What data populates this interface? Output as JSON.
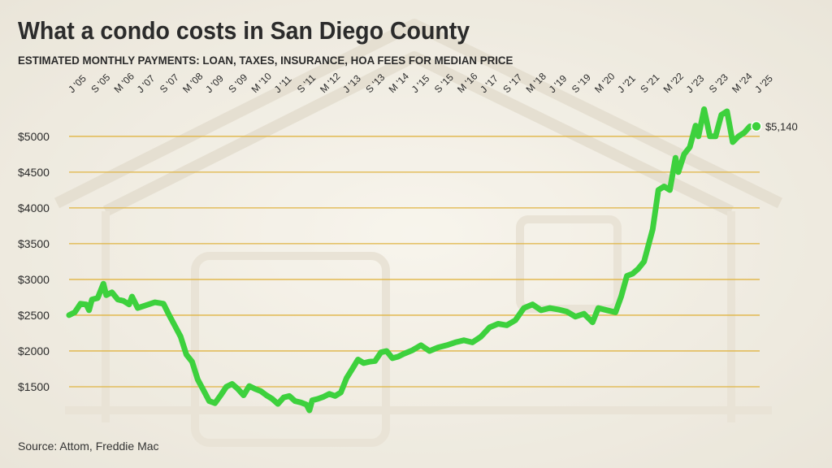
{
  "title": "What a condo costs in San Diego County",
  "subtitle": "ESTIMATED MONTHLY PAYMENTS: LOAN, TAXES, INSURANCE, HOA FEES FOR MEDIAN PRICE",
  "source": "Source: Attom, Freddie Mac",
  "colors": {
    "line": "#3dd13d",
    "gridline": "#e0b443",
    "text": "#2b2b2b",
    "background": "#f1ede2"
  },
  "chart_data": {
    "type": "line",
    "xlabel": "",
    "ylabel": "",
    "xlim": [
      "2005-01",
      "2025-01"
    ],
    "ylim": [
      1000,
      5600
    ],
    "grid": "horizontal",
    "legend": "none",
    "y_ticks": [
      {
        "value": 1500,
        "label": "$1500"
      },
      {
        "value": 2000,
        "label": "$2000"
      },
      {
        "value": 2500,
        "label": "$2500"
      },
      {
        "value": 3000,
        "label": "$3000"
      },
      {
        "value": 3500,
        "label": "$3500"
      },
      {
        "value": 4000,
        "label": "$4000"
      },
      {
        "value": 4500,
        "label": "$4500"
      },
      {
        "value": 5000,
        "label": "$5000"
      }
    ],
    "x_ticks": [
      {
        "date": "2005-01",
        "label": "J '05"
      },
      {
        "date": "2005-09",
        "label": "S '05"
      },
      {
        "date": "2006-05",
        "label": "M '06"
      },
      {
        "date": "2007-01",
        "label": "J '07"
      },
      {
        "date": "2007-09",
        "label": "S '07"
      },
      {
        "date": "2008-05",
        "label": "M '08"
      },
      {
        "date": "2009-01",
        "label": "J '09"
      },
      {
        "date": "2009-09",
        "label": "S '09"
      },
      {
        "date": "2010-05",
        "label": "M '10"
      },
      {
        "date": "2011-01",
        "label": "J '11"
      },
      {
        "date": "2011-09",
        "label": "S '11"
      },
      {
        "date": "2012-05",
        "label": "M '12"
      },
      {
        "date": "2013-01",
        "label": "J '13"
      },
      {
        "date": "2013-09",
        "label": "S '13"
      },
      {
        "date": "2014-05",
        "label": "M '14"
      },
      {
        "date": "2015-01",
        "label": "J '15"
      },
      {
        "date": "2015-09",
        "label": "S '15"
      },
      {
        "date": "2016-05",
        "label": "M '16"
      },
      {
        "date": "2017-01",
        "label": "J '17"
      },
      {
        "date": "2017-09",
        "label": "S '17"
      },
      {
        "date": "2018-05",
        "label": "M '18"
      },
      {
        "date": "2019-01",
        "label": "J '19"
      },
      {
        "date": "2019-09",
        "label": "S '19"
      },
      {
        "date": "2020-05",
        "label": "M '20"
      },
      {
        "date": "2021-01",
        "label": "J '21"
      },
      {
        "date": "2021-09",
        "label": "S '21"
      },
      {
        "date": "2022-05",
        "label": "M '22"
      },
      {
        "date": "2023-01",
        "label": "J '23"
      },
      {
        "date": "2023-09",
        "label": "S '23"
      },
      {
        "date": "2024-05",
        "label": "M '24"
      },
      {
        "date": "2025-01",
        "label": "J '25"
      }
    ],
    "series": [
      {
        "points": [
          [
            "2005-01",
            2500
          ],
          [
            "2005-03",
            2540
          ],
          [
            "2005-05",
            2660
          ],
          [
            "2005-07",
            2650
          ],
          [
            "2005-08",
            2570
          ],
          [
            "2005-09",
            2720
          ],
          [
            "2005-11",
            2740
          ],
          [
            "2006-01",
            2940
          ],
          [
            "2006-02",
            2780
          ],
          [
            "2006-04",
            2820
          ],
          [
            "2006-06",
            2720
          ],
          [
            "2006-08",
            2700
          ],
          [
            "2006-10",
            2650
          ],
          [
            "2006-11",
            2760
          ],
          [
            "2007-01",
            2600
          ],
          [
            "2007-04",
            2640
          ],
          [
            "2007-07",
            2680
          ],
          [
            "2007-10",
            2660
          ],
          [
            "2007-12",
            2500
          ],
          [
            "2008-02",
            2350
          ],
          [
            "2008-04",
            2200
          ],
          [
            "2008-06",
            1950
          ],
          [
            "2008-08",
            1850
          ],
          [
            "2008-10",
            1600
          ],
          [
            "2008-12",
            1450
          ],
          [
            "2009-02",
            1300
          ],
          [
            "2009-04",
            1270
          ],
          [
            "2009-06",
            1380
          ],
          [
            "2009-08",
            1500
          ],
          [
            "2009-10",
            1540
          ],
          [
            "2009-12",
            1470
          ],
          [
            "2010-02",
            1380
          ],
          [
            "2010-04",
            1510
          ],
          [
            "2010-06",
            1470
          ],
          [
            "2010-08",
            1440
          ],
          [
            "2010-10",
            1380
          ],
          [
            "2010-12",
            1330
          ],
          [
            "2011-02",
            1260
          ],
          [
            "2011-04",
            1350
          ],
          [
            "2011-06",
            1370
          ],
          [
            "2011-08",
            1300
          ],
          [
            "2011-10",
            1280
          ],
          [
            "2011-12",
            1250
          ],
          [
            "2012-01",
            1170
          ],
          [
            "2012-02",
            1310
          ],
          [
            "2012-04",
            1330
          ],
          [
            "2012-06",
            1360
          ],
          [
            "2012-08",
            1400
          ],
          [
            "2012-10",
            1370
          ],
          [
            "2012-12",
            1420
          ],
          [
            "2013-02",
            1620
          ],
          [
            "2013-04",
            1750
          ],
          [
            "2013-06",
            1880
          ],
          [
            "2013-08",
            1830
          ],
          [
            "2013-10",
            1850
          ],
          [
            "2013-12",
            1860
          ],
          [
            "2014-02",
            1980
          ],
          [
            "2014-04",
            2000
          ],
          [
            "2014-06",
            1900
          ],
          [
            "2014-08",
            1920
          ],
          [
            "2014-10",
            1960
          ],
          [
            "2015-01",
            2010
          ],
          [
            "2015-04",
            2080
          ],
          [
            "2015-07",
            2000
          ],
          [
            "2015-10",
            2050
          ],
          [
            "2016-01",
            2080
          ],
          [
            "2016-04",
            2120
          ],
          [
            "2016-07",
            2150
          ],
          [
            "2016-10",
            2120
          ],
          [
            "2017-01",
            2200
          ],
          [
            "2017-04",
            2330
          ],
          [
            "2017-07",
            2380
          ],
          [
            "2017-10",
            2360
          ],
          [
            "2018-01",
            2430
          ],
          [
            "2018-04",
            2600
          ],
          [
            "2018-07",
            2650
          ],
          [
            "2018-10",
            2570
          ],
          [
            "2019-01",
            2600
          ],
          [
            "2019-04",
            2580
          ],
          [
            "2019-07",
            2550
          ],
          [
            "2019-10",
            2480
          ],
          [
            "2020-01",
            2520
          ],
          [
            "2020-04",
            2400
          ],
          [
            "2020-06",
            2600
          ],
          [
            "2020-09",
            2570
          ],
          [
            "2020-12",
            2540
          ],
          [
            "2021-02",
            2760
          ],
          [
            "2021-04",
            3050
          ],
          [
            "2021-06",
            3080
          ],
          [
            "2021-08",
            3150
          ],
          [
            "2021-10",
            3250
          ],
          [
            "2022-01",
            3700
          ],
          [
            "2022-03",
            4250
          ],
          [
            "2022-05",
            4300
          ],
          [
            "2022-07",
            4250
          ],
          [
            "2022-09",
            4700
          ],
          [
            "2022-10",
            4500
          ],
          [
            "2022-12",
            4750
          ],
          [
            "2023-02",
            4850
          ],
          [
            "2023-04",
            5150
          ],
          [
            "2023-05",
            5000
          ],
          [
            "2023-07",
            5380
          ],
          [
            "2023-09",
            5000
          ],
          [
            "2023-11",
            5000
          ],
          [
            "2024-01",
            5300
          ],
          [
            "2024-03",
            5350
          ],
          [
            "2024-05",
            4920
          ],
          [
            "2024-07",
            5000
          ],
          [
            "2024-09",
            5050
          ],
          [
            "2024-11",
            5140
          ]
        ]
      }
    ],
    "annotations": [
      {
        "date": "2024-11",
        "value": 5140,
        "label": "$5,140"
      }
    ]
  }
}
